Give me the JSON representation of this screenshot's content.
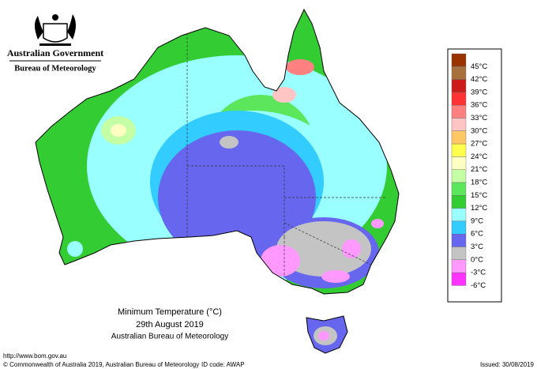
{
  "header": {
    "title": "Australian Government",
    "subtitle": "Bureau of Meteorology"
  },
  "map": {
    "title": "Minimum Temperature (°C)",
    "date": "29th August 2019",
    "source": "Australian Bureau of Meteorology"
  },
  "legend": [
    {
      "label": "45°C",
      "color": "#993300"
    },
    {
      "label": "42°C",
      "color": "#a8703c"
    },
    {
      "label": "39°C",
      "color": "#cc1a1a"
    },
    {
      "label": "36°C",
      "color": "#ff3333"
    },
    {
      "label": "33°C",
      "color": "#ff8080"
    },
    {
      "label": "30°C",
      "color": "#ffc4c4"
    },
    {
      "label": "27°C",
      "color": "#ffc766"
    },
    {
      "label": "24°C",
      "color": "#ffff4d"
    },
    {
      "label": "21°C",
      "color": "#ffffc2"
    },
    {
      "label": "18°C",
      "color": "#c4ffa6"
    },
    {
      "label": "15°C",
      "color": "#5ce65c"
    },
    {
      "label": "12°C",
      "color": "#33cc33"
    },
    {
      "label": "9°C",
      "color": "#99ffff"
    },
    {
      "label": "6°C",
      "color": "#33ccff"
    },
    {
      "label": "3°C",
      "color": "#6666ee"
    },
    {
      "label": "0°C",
      "color": "#c4c4c4"
    },
    {
      "label": "-3°C",
      "color": "#ff99ff"
    },
    {
      "label": "-6°C",
      "color": "#ff33ff"
    }
  ],
  "footer": {
    "url": "http://www.bom.gov.au",
    "copyright": "© Commonwealth of Australia 2019, Australian Bureau of Meteorology",
    "id": "ID code: AWAP",
    "issued": "Issued: 30/08/2019"
  }
}
